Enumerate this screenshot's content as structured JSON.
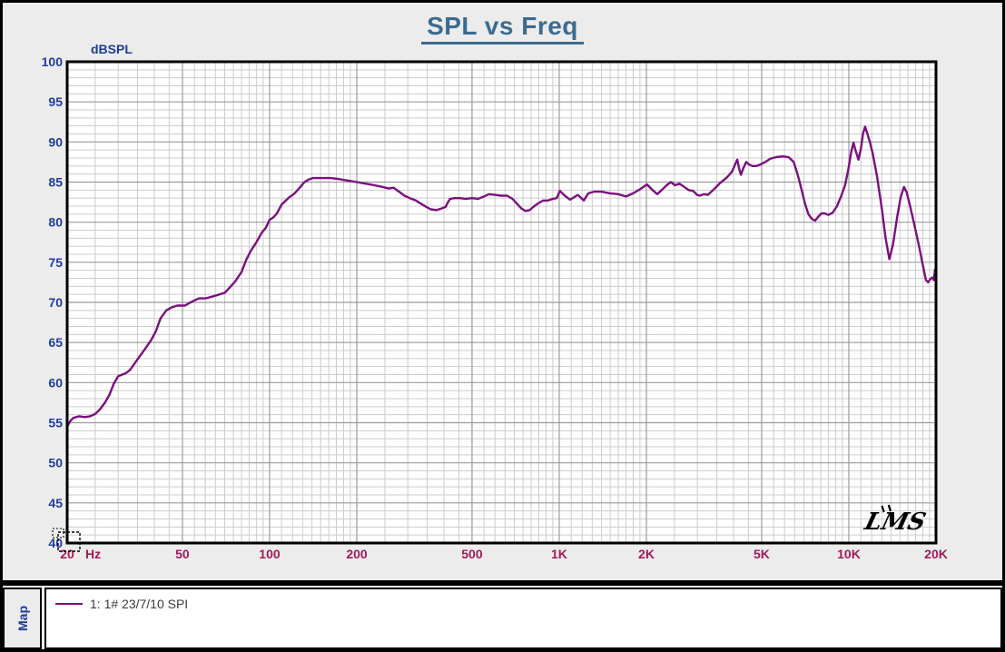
{
  "window": {
    "title": "SPL vs Freq"
  },
  "legend": {
    "pane_label": "Map",
    "items": [
      {
        "label": "1: 1# 23/7/10 SPI",
        "color": "#7b0f7e"
      }
    ]
  },
  "chart_data": {
    "type": "line",
    "title": "SPL vs Freq",
    "ylabel": "dBSPL",
    "xlabel_unit": "Hz",
    "x_scale": "log",
    "xlim": [
      20,
      20000
    ],
    "ylim": [
      40,
      100
    ],
    "y_major_step": 5,
    "y_minor_step": 1,
    "grid": "on",
    "logo_text": "LMS",
    "colors": {
      "window_bg": "#ececec",
      "plot_bg": "#ffffff",
      "title": "#3a6b92",
      "y_axis_text": "#1e3c9e",
      "x_axis_text": "#a01a5a",
      "grid_minor": "#cccccc",
      "grid_major": "#9a9a9a",
      "border": "#000000",
      "curve": "#7b0f7e"
    },
    "x_ticks": [
      {
        "f": 20,
        "label": "20"
      },
      {
        "f": 50,
        "label": "50"
      },
      {
        "f": 100,
        "label": "100"
      },
      {
        "f": 200,
        "label": "200"
      },
      {
        "f": 500,
        "label": "500"
      },
      {
        "f": 1000,
        "label": "1K"
      },
      {
        "f": 2000,
        "label": "2K"
      },
      {
        "f": 5000,
        "label": "5K"
      },
      {
        "f": 10000,
        "label": "10K"
      },
      {
        "f": 20000,
        "label": "20K"
      }
    ],
    "y_ticks": [
      {
        "db": 100,
        "label": "100"
      },
      {
        "db": 95,
        "label": "95"
      },
      {
        "db": 90,
        "label": "90"
      },
      {
        "db": 85,
        "label": "85"
      },
      {
        "db": 80,
        "label": "80"
      },
      {
        "db": 75,
        "label": "75"
      },
      {
        "db": 70,
        "label": "70"
      },
      {
        "db": 65,
        "label": "65"
      },
      {
        "db": 60,
        "label": "60"
      },
      {
        "db": 55,
        "label": "55"
      },
      {
        "db": 50,
        "label": "50"
      },
      {
        "db": 45,
        "label": "45"
      },
      {
        "db": 40,
        "label": "40"
      }
    ],
    "cursor": {
      "f": 20,
      "db": 40
    },
    "series": [
      {
        "name": "1: 1# 23/7/10 SPI",
        "color": "#7b0f7e",
        "points": [
          [
            20,
            54.5
          ],
          [
            20.5,
            55.2
          ],
          [
            21,
            55.6
          ],
          [
            22,
            55.8
          ],
          [
            23,
            55.7
          ],
          [
            24,
            55.8
          ],
          [
            25,
            56.1
          ],
          [
            26,
            56.7
          ],
          [
            27,
            57.5
          ],
          [
            28,
            58.5
          ],
          [
            29,
            59.9
          ],
          [
            30,
            60.8
          ],
          [
            31,
            61.0
          ],
          [
            32,
            61.2
          ],
          [
            33,
            61.6
          ],
          [
            35,
            62.9
          ],
          [
            37,
            64.1
          ],
          [
            39,
            65.3
          ],
          [
            40.5,
            66.4
          ],
          [
            42,
            68.0
          ],
          [
            44,
            69.0
          ],
          [
            46,
            69.4
          ],
          [
            48,
            69.6
          ],
          [
            51,
            69.6
          ],
          [
            54,
            70.1
          ],
          [
            57,
            70.5
          ],
          [
            60,
            70.5
          ],
          [
            63,
            70.7
          ],
          [
            66,
            70.9
          ],
          [
            70,
            71.2
          ],
          [
            73,
            71.9
          ],
          [
            76,
            72.6
          ],
          [
            80,
            73.8
          ],
          [
            83,
            75.3
          ],
          [
            86,
            76.4
          ],
          [
            90,
            77.5
          ],
          [
            94,
            78.7
          ],
          [
            97,
            79.3
          ],
          [
            100,
            80.3
          ],
          [
            103,
            80.6
          ],
          [
            106,
            81.1
          ],
          [
            110,
            82.2
          ],
          [
            116,
            83.0
          ],
          [
            122,
            83.6
          ],
          [
            127,
            84.3
          ],
          [
            132,
            85.0
          ],
          [
            136,
            85.3
          ],
          [
            141,
            85.5
          ],
          [
            150,
            85.5
          ],
          [
            162,
            85.5
          ],
          [
            172,
            85.4
          ],
          [
            185,
            85.2
          ],
          [
            200,
            85.0
          ],
          [
            215,
            84.8
          ],
          [
            230,
            84.6
          ],
          [
            245,
            84.4
          ],
          [
            258,
            84.2
          ],
          [
            268,
            84.3
          ],
          [
            280,
            83.8
          ],
          [
            292,
            83.3
          ],
          [
            305,
            83.0
          ],
          [
            320,
            82.7
          ],
          [
            340,
            82.1
          ],
          [
            360,
            81.6
          ],
          [
            377,
            81.5
          ],
          [
            392,
            81.7
          ],
          [
            405,
            81.9
          ],
          [
            413,
            82.5
          ],
          [
            420,
            82.9
          ],
          [
            435,
            83.0
          ],
          [
            455,
            83.0
          ],
          [
            475,
            82.9
          ],
          [
            500,
            83.0
          ],
          [
            525,
            82.9
          ],
          [
            550,
            83.2
          ],
          [
            572,
            83.5
          ],
          [
            600,
            83.4
          ],
          [
            630,
            83.3
          ],
          [
            660,
            83.3
          ],
          [
            690,
            82.9
          ],
          [
            715,
            82.3
          ],
          [
            740,
            81.7
          ],
          [
            765,
            81.4
          ],
          [
            790,
            81.5
          ],
          [
            820,
            82.0
          ],
          [
            850,
            82.4
          ],
          [
            880,
            82.7
          ],
          [
            915,
            82.7
          ],
          [
            950,
            82.9
          ],
          [
            980,
            83.0
          ],
          [
            1005,
            83.9
          ],
          [
            1045,
            83.3
          ],
          [
            1090,
            82.8
          ],
          [
            1160,
            83.4
          ],
          [
            1215,
            82.7
          ],
          [
            1260,
            83.6
          ],
          [
            1320,
            83.8
          ],
          [
            1400,
            83.8
          ],
          [
            1500,
            83.6
          ],
          [
            1600,
            83.5
          ],
          [
            1700,
            83.2
          ],
          [
            1800,
            83.6
          ],
          [
            1900,
            84.1
          ],
          [
            2010,
            84.7
          ],
          [
            2100,
            84.0
          ],
          [
            2180,
            83.5
          ],
          [
            2260,
            84.0
          ],
          [
            2350,
            84.6
          ],
          [
            2430,
            85.0
          ],
          [
            2510,
            84.6
          ],
          [
            2600,
            84.8
          ],
          [
            2700,
            84.4
          ],
          [
            2800,
            84.0
          ],
          [
            2900,
            83.9
          ],
          [
            2990,
            83.4
          ],
          [
            3060,
            83.3
          ],
          [
            3160,
            83.5
          ],
          [
            3260,
            83.4
          ],
          [
            3400,
            84.0
          ],
          [
            3600,
            84.9
          ],
          [
            3800,
            85.6
          ],
          [
            3950,
            86.3
          ],
          [
            4060,
            87.3
          ],
          [
            4120,
            87.8
          ],
          [
            4180,
            86.7
          ],
          [
            4240,
            85.9
          ],
          [
            4320,
            86.7
          ],
          [
            4420,
            87.5
          ],
          [
            4520,
            87.2
          ],
          [
            4650,
            87.0
          ],
          [
            4800,
            87.0
          ],
          [
            4950,
            87.2
          ],
          [
            5150,
            87.5
          ],
          [
            5350,
            87.9
          ],
          [
            5600,
            88.1
          ],
          [
            5900,
            88.2
          ],
          [
            6200,
            88.1
          ],
          [
            6450,
            87.5
          ],
          [
            6650,
            86.0
          ],
          [
            6850,
            84.2
          ],
          [
            7050,
            82.4
          ],
          [
            7250,
            81.0
          ],
          [
            7450,
            80.4
          ],
          [
            7650,
            80.2
          ],
          [
            7850,
            80.7
          ],
          [
            8050,
            81.1
          ],
          [
            8250,
            81.1
          ],
          [
            8500,
            80.9
          ],
          [
            8800,
            81.2
          ],
          [
            9100,
            82.0
          ],
          [
            9400,
            83.2
          ],
          [
            9700,
            84.6
          ],
          [
            9950,
            86.5
          ],
          [
            10200,
            88.8
          ],
          [
            10380,
            89.9
          ],
          [
            10600,
            88.7
          ],
          [
            10800,
            87.8
          ],
          [
            11000,
            89.1
          ],
          [
            11200,
            91.1
          ],
          [
            11380,
            91.9
          ],
          [
            11550,
            91.2
          ],
          [
            11800,
            90.1
          ],
          [
            12100,
            88.5
          ],
          [
            12500,
            85.8
          ],
          [
            13000,
            81.7
          ],
          [
            13400,
            78.0
          ],
          [
            13800,
            75.4
          ],
          [
            14200,
            77.2
          ],
          [
            14700,
            80.7
          ],
          [
            15100,
            83.1
          ],
          [
            15500,
            84.4
          ],
          [
            15850,
            83.7
          ],
          [
            16300,
            81.9
          ],
          [
            16900,
            79.4
          ],
          [
            17500,
            76.9
          ],
          [
            18000,
            74.7
          ],
          [
            18450,
            72.8
          ],
          [
            18800,
            72.5
          ],
          [
            19100,
            72.9
          ],
          [
            19400,
            73.1
          ],
          [
            19650,
            72.8
          ],
          [
            19850,
            74.1
          ],
          [
            20000,
            74.3
          ]
        ]
      }
    ]
  }
}
